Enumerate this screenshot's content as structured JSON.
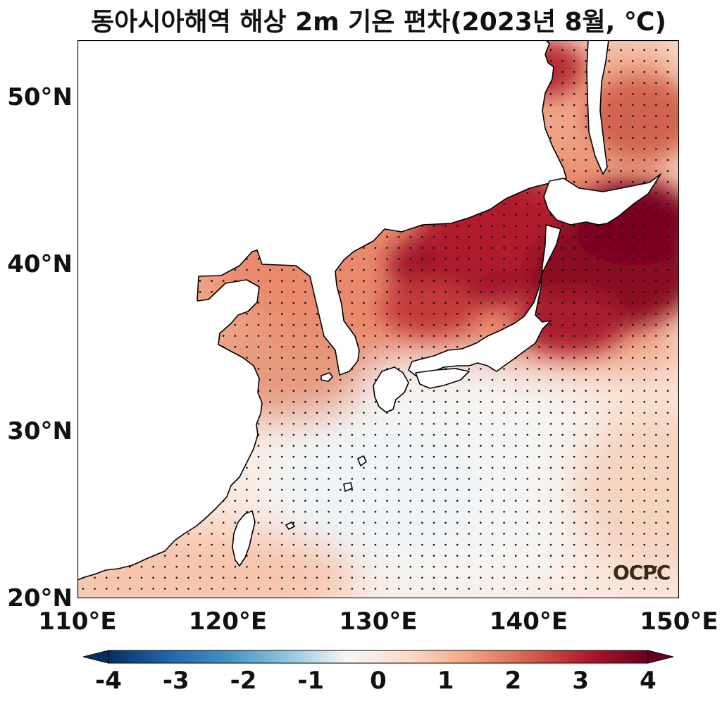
{
  "title": "동아시아해역 해상 2m 기온 편차(2023년 8월, ℃)",
  "map": {
    "lat_ticks": [
      {
        "value": 50,
        "label": "50°N"
      },
      {
        "value": 40,
        "label": "40°N"
      },
      {
        "value": 30,
        "label": "30°N"
      },
      {
        "value": 20,
        "label": "20°N"
      }
    ],
    "lon_ticks": [
      {
        "value": 110,
        "label": "110°E"
      },
      {
        "value": 120,
        "label": "120°E"
      },
      {
        "value": 130,
        "label": "130°E"
      },
      {
        "value": 140,
        "label": "140°E"
      },
      {
        "value": 150,
        "label": "150°E"
      }
    ],
    "lon_range": [
      110,
      150
    ],
    "lat_range": [
      20,
      53.4
    ],
    "land_color": "#ffffff",
    "coast_color": "#000000"
  },
  "colorbar": {
    "ticks": [
      "-4",
      "-3",
      "-2",
      "-1",
      "0",
      "1",
      "2",
      "3",
      "4"
    ],
    "min": -4,
    "max": 4,
    "colors": [
      "#053061",
      "#2166ac",
      "#4393c3",
      "#92c5de",
      "#f7f7f7",
      "#fddbc7",
      "#f4a582",
      "#d6604d",
      "#b2182b",
      "#67001f"
    ]
  },
  "watermark": "OCPC"
}
